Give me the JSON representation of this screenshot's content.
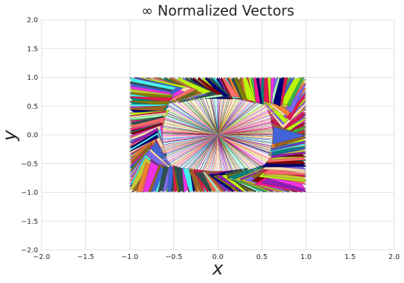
{
  "chart_data": {
    "type": "vector-field",
    "title": "∞  Normalized Vectors",
    "xlabel": "x",
    "ylabel": "y",
    "xlim": [
      -2.0,
      2.0
    ],
    "ylim": [
      -2.0,
      2.0
    ],
    "xticks": [
      "−2.0",
      "−1.5",
      "−1.0",
      "−0.5",
      "0.0",
      "0.5",
      "1.0",
      "1.5",
      "2.0"
    ],
    "yticks": [
      "2.0",
      "1.5",
      "1.0",
      "0.5",
      "0.0",
      "−0.5",
      "−1.0",
      "−1.5",
      "−2.0"
    ],
    "grid": true,
    "norm": "infinity",
    "vectors": {
      "count": 240,
      "origin": [
        0,
        0
      ],
      "boundary": "unit square |x|=1 or |y|=1",
      "colors": [
        "#ff6b6b",
        "#3cb44b",
        "#4363d8",
        "#f58231",
        "#911eb4",
        "#46f0f0",
        "#f032e6",
        "#bcf60c",
        "#e6194b",
        "#008080",
        "#9a6324",
        "#800000",
        "#aaffc3",
        "#808000",
        "#000075",
        "#ffd8b1",
        "#c8c832",
        "#7b68ee",
        "#2f4f4f",
        "#ff1493"
      ]
    }
  }
}
